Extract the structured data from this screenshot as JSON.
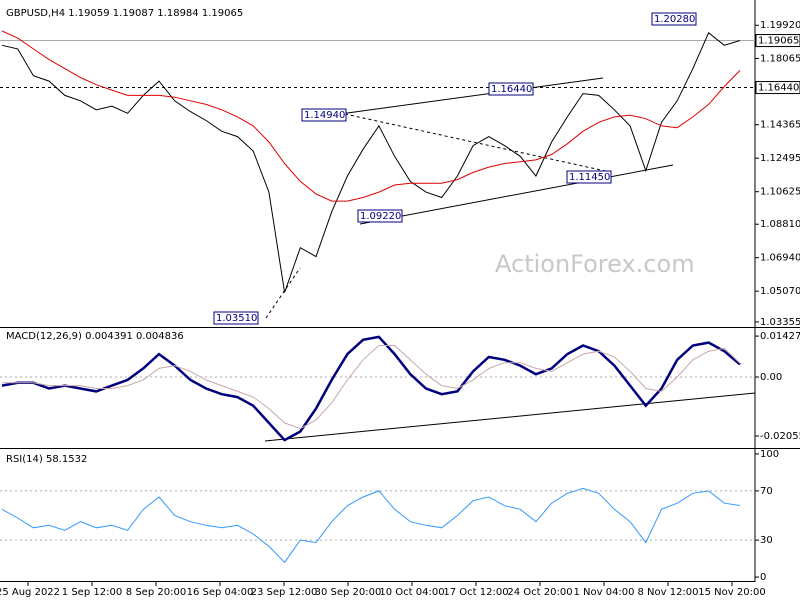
{
  "chart_data": [
    {
      "type": "line",
      "title": "GBPUSD,H4  1.19059 1.19087 1.18984 1.19065",
      "ylim": [
        1.0307,
        1.2105
      ],
      "yticks": [
        {
          "value": 1.1992,
          "label": "1.19920"
        },
        1.18065,
        1.14365,
        1.12495,
        1.10625,
        {
          "value": 1.0881,
          "label": "1.08810"
        },
        {
          "value": 1.0694,
          "label": "1.06940"
        },
        {
          "value": 1.0507,
          "label": "1.05070"
        },
        1.03355
      ],
      "hlines": [
        1.19065,
        {
          "value": 1.1644,
          "label": "1.16440"
        }
      ],
      "annotations": [
        "1.20280",
        "1.16440",
        "1.14940",
        "1.09220",
        "1.11450",
        "1.03510"
      ],
      "series": [
        {
          "color": "#000000",
          "values": [
            1.188,
            1.186,
            1.171,
            1.168,
            1.16,
            1.157,
            1.152,
            1.154,
            1.15,
            1.16,
            1.168,
            1.157,
            1.151,
            1.146,
            1.14,
            1.137,
            1.129,
            1.106,
            1.05,
            1.075,
            1.07,
            1.095,
            1.115,
            1.13,
            1.143,
            1.126,
            1.112,
            1.106,
            1.103,
            1.115,
            1.132,
            1.137,
            1.132,
            1.126,
            1.115,
            1.134,
            1.148,
            1.161,
            1.16,
            1.152,
            1.143,
            1.118,
            1.145,
            1.157,
            1.175,
            1.195,
            1.188,
            1.19065
          ]
        },
        {
          "color": "#e00000",
          "values": [
            1.196,
            1.192,
            1.186,
            1.18,
            1.175,
            1.17,
            1.166,
            1.163,
            1.16,
            1.16,
            1.16,
            1.159,
            1.157,
            1.155,
            1.152,
            1.148,
            1.143,
            1.134,
            1.122,
            1.112,
            1.105,
            1.101,
            1.101,
            1.103,
            1.106,
            1.11,
            1.111,
            1.111,
            1.111,
            1.113,
            1.117,
            1.12,
            1.122,
            1.123,
            1.124,
            1.127,
            1.133,
            1.14,
            1.145,
            1.148,
            1.149,
            1.147,
            1.143,
            1.142,
            1.148,
            1.155,
            1.165,
            1.174
          ]
        }
      ]
    },
    {
      "type": "line",
      "title": "MACD(12,26,9) 0.004391 0.004836",
      "ylim": [
        -0.0244,
        0.0171
      ],
      "yticks": [
        0.014278,
        {
          "value": 0,
          "label": "0.00"
        },
        -0.020556
      ],
      "series": [
        {
          "color": "#00007f",
          "values": [
            -0.003,
            -0.002,
            -0.002,
            -0.004,
            -0.003,
            -0.004,
            -0.005,
            -0.003,
            -0.001,
            0.003,
            0.008,
            0.004,
            -0.001,
            -0.004,
            -0.006,
            -0.007,
            -0.01,
            -0.016,
            -0.022,
            -0.019,
            -0.011,
            -0.001,
            0.008,
            0.013,
            0.014,
            0.008,
            0.001,
            -0.004,
            -0.006,
            -0.005,
            0.002,
            0.007,
            0.006,
            0.004,
            0.001,
            0.003,
            0.008,
            0.011,
            0.009,
            0.004,
            -0.003,
            -0.01,
            -0.004,
            0.006,
            0.011,
            0.012,
            0.009,
            0.004391
          ]
        },
        {
          "color": "#c8a8a8",
          "values": [
            -0.002,
            -0.002,
            -0.002,
            -0.003,
            -0.003,
            -0.003,
            -0.004,
            -0.004,
            -0.003,
            -0.001,
            0.003,
            0.004,
            0.002,
            -0.001,
            -0.003,
            -0.005,
            -0.007,
            -0.011,
            -0.016,
            -0.018,
            -0.015,
            -0.009,
            -0.001,
            0.006,
            0.011,
            0.011,
            0.006,
            0.001,
            -0.003,
            -0.004,
            -0.001,
            0.003,
            0.005,
            0.005,
            0.003,
            0.002,
            0.005,
            0.008,
            0.009,
            0.007,
            0.002,
            -0.004,
            -0.005,
            0.0,
            0.006,
            0.009,
            0.01,
            0.004836
          ]
        }
      ]
    },
    {
      "type": "line",
      "title": "RSI(14) 58.1532",
      "ylim": [
        -2.4,
        102.4
      ],
      "yticks": [
        100,
        70,
        30,
        0
      ],
      "series": [
        {
          "color": "#3399ff",
          "values": [
            55,
            48,
            40,
            42,
            38,
            45,
            40,
            42,
            38,
            55,
            65,
            50,
            45,
            42,
            40,
            42,
            35,
            25,
            12,
            30,
            28,
            45,
            58,
            65,
            70,
            55,
            45,
            42,
            40,
            50,
            62,
            65,
            58,
            55,
            45,
            60,
            68,
            72,
            68,
            55,
            45,
            28,
            55,
            60,
            68,
            70,
            60,
            58.1532
          ]
        }
      ]
    }
  ],
  "time_axis": {
    "labels": [
      "25 Aug 2022",
      "1 Sep 12:00",
      "8 Sep 20:00",
      "16 Sep 04:00",
      "23 Sep 12:00",
      "30 Sep 20:00",
      "10 Oct 04:00",
      "17 Oct 12:00",
      "24 Oct 20:00",
      "1 Nov 04:00",
      "8 Nov 12:00",
      "15 Nov 20:00"
    ]
  },
  "watermark": "ActionForex.com"
}
